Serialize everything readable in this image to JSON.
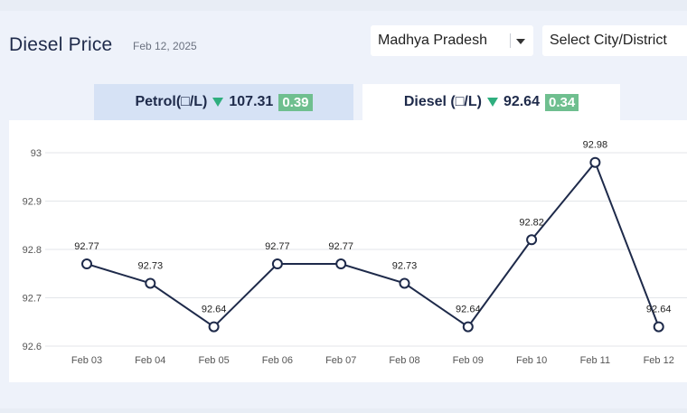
{
  "header": {
    "title": "Diesel Price",
    "date": "Feb 12, 2025"
  },
  "filters": {
    "state": {
      "value": "Madhya Pradesh",
      "icon": "chevron-down-icon"
    },
    "city": {
      "value": "Select City/District"
    }
  },
  "tabs": [
    {
      "label": "Petrol(□/L)",
      "price": "107.31",
      "change": "0.39",
      "trend": "down",
      "active": false
    },
    {
      "label": "Diesel (□/L)",
      "price": "92.64",
      "change": "0.34",
      "trend": "down",
      "active": true
    }
  ],
  "colors": {
    "line": "#1e2a4a",
    "trend_down": "#2fae7e",
    "badge": "#6fbf8f",
    "grid": "#e3e6ea"
  },
  "chart_data": {
    "type": "line",
    "categories": [
      "Feb 03",
      "Feb 04",
      "Feb 05",
      "Feb 06",
      "Feb 07",
      "Feb 08",
      "Feb 09",
      "Feb 10",
      "Feb 11",
      "Feb 12"
    ],
    "values": [
      92.77,
      92.73,
      92.64,
      92.77,
      92.77,
      92.73,
      92.64,
      92.82,
      92.98,
      92.64
    ],
    "data_labels": [
      "92.77",
      "92.73",
      "92.64",
      "92.77",
      "92.77",
      "92.73",
      "92.64",
      "92.82",
      "92.98",
      "92.64"
    ],
    "yticks": [
      92.6,
      92.7,
      92.8,
      92.9,
      93
    ],
    "ytick_labels": [
      "92.6",
      "92.7",
      "92.8",
      "92.9",
      "93"
    ],
    "ylim": [
      92.6,
      93.0
    ],
    "grid": true,
    "title": "",
    "xlabel": "",
    "ylabel": ""
  }
}
